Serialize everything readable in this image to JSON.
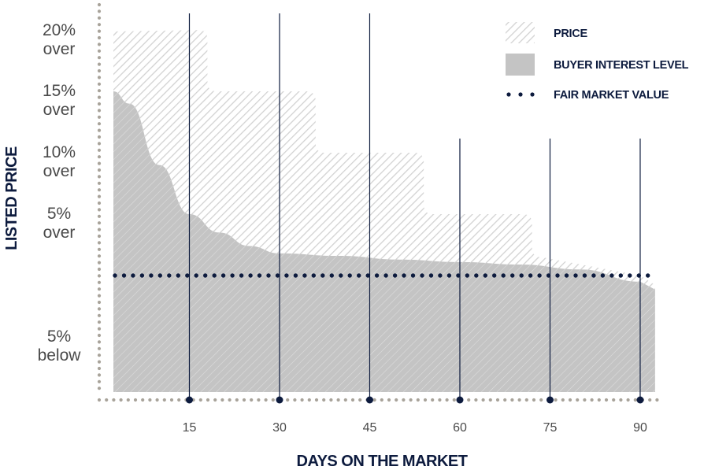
{
  "chart_data": {
    "type": "area",
    "xlabel": "DAYS ON THE MARKET",
    "ylabel": "LISTED PRICE",
    "x_ticks": [
      15,
      30,
      45,
      60,
      75,
      90
    ],
    "x_tick_labels": [
      "15",
      "30",
      "45",
      "60",
      "75",
      "90"
    ],
    "xlim": [
      0,
      93
    ],
    "y_ticks": [
      {
        "value": 20,
        "lines": [
          "20%",
          "over"
        ]
      },
      {
        "value": 15,
        "lines": [
          "15%",
          "over"
        ]
      },
      {
        "value": 10,
        "lines": [
          "10%",
          "over"
        ]
      },
      {
        "value": 5,
        "lines": [
          "5%",
          "over"
        ]
      },
      {
        "value": -5,
        "lines": [
          "5%",
          "below"
        ]
      }
    ],
    "ylim": [
      -10,
      22
    ],
    "series": [
      {
        "name": "PRICE",
        "style": "hatched",
        "x": [
          0,
          18,
          18,
          36,
          36,
          54,
          54,
          72,
          72,
          90
        ],
        "y": [
          20,
          20,
          15,
          15,
          10,
          10,
          5,
          5,
          1.5,
          0
        ]
      },
      {
        "name": "BUYER INTEREST LEVEL",
        "style": "solid",
        "x": [
          0,
          5,
          10,
          15,
          20,
          25,
          30,
          40,
          50,
          60,
          70,
          80,
          90
        ],
        "y": [
          15,
          14,
          9,
          5,
          3.5,
          2.4,
          1.8,
          1.6,
          1.3,
          1.1,
          0.9,
          0.5,
          -0.5
        ]
      },
      {
        "name": "FAIR MARKET VALUE",
        "style": "dotted",
        "x": [
          0,
          90
        ],
        "y": [
          0,
          0
        ]
      }
    ],
    "legend": {
      "position": "top-right",
      "entries": [
        "PRICE",
        "BUYER INTEREST LEVEL",
        "FAIR MARKET VALUE"
      ]
    },
    "colors": {
      "price_hatch": "#d2d2d2",
      "buyer_fill": "#c4c4c4",
      "fair_value": "#0d1b3e",
      "vertical_lines": "#0d1b3e",
      "axis_dots": "#a8a39a"
    },
    "grid": false
  }
}
